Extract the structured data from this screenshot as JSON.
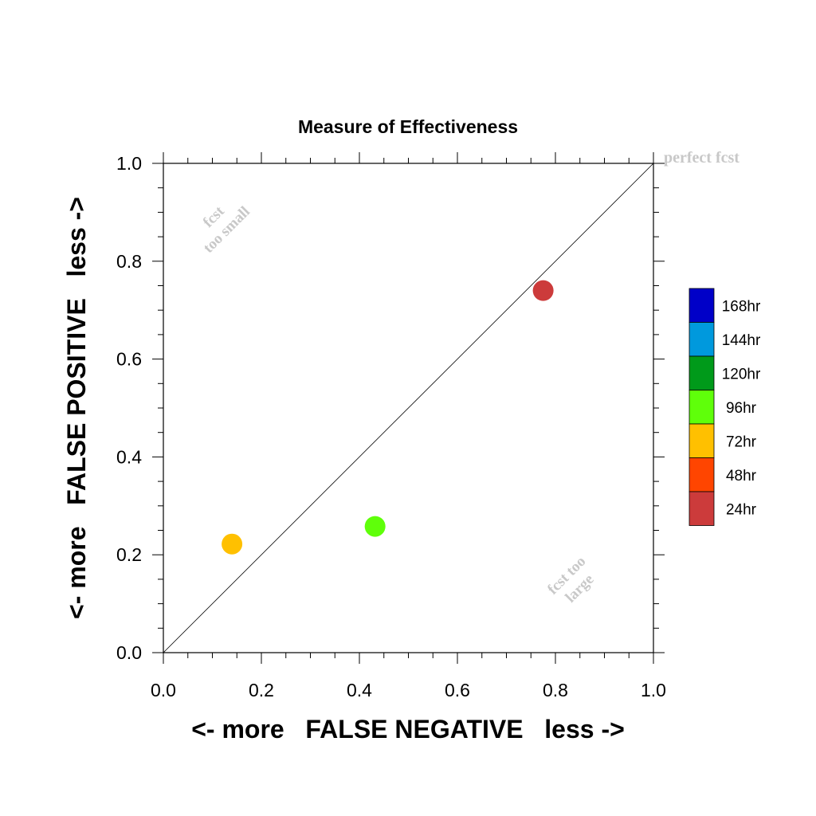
{
  "chart_data": {
    "type": "scatter",
    "title": "Measure of Effectiveness",
    "xlabel": "<- more   FALSE NEGATIVE   less ->",
    "ylabel": "<- more   FALSE POSITIVE   less ->",
    "xlim": [
      0.0,
      1.0
    ],
    "ylim": [
      0.0,
      1.0
    ],
    "x_ticks": [
      "0.0",
      "0.2",
      "0.4",
      "0.6",
      "0.8",
      "1.0"
    ],
    "y_ticks": [
      "0.0",
      "0.2",
      "0.4",
      "0.6",
      "0.8",
      "1.0"
    ],
    "grid": false,
    "reference_line": {
      "from": [
        0.0,
        0.0
      ],
      "to": [
        1.0,
        1.0
      ]
    },
    "annotations": {
      "perfect": "perfect fcst",
      "small_line1": "fcst",
      "small_line2": "too small",
      "large_line1": "fcst too",
      "large_line2": "large"
    },
    "points": [
      {
        "label": "24hr",
        "x": 0.775,
        "y": 0.74,
        "color": "#cc3b3b"
      },
      {
        "label": "72hr",
        "x": 0.14,
        "y": 0.222,
        "color": "#ffc000"
      },
      {
        "label": "96hr",
        "x": 0.432,
        "y": 0.258,
        "color": "#5fff0a"
      }
    ],
    "legend": {
      "position": "right",
      "items": [
        {
          "label": "168hr",
          "color": "#0000c8"
        },
        {
          "label": "144hr",
          "color": "#0099dd"
        },
        {
          "label": "120hr",
          "color": "#009a1a"
        },
        {
          "label": "96hr",
          "color": "#5fff0a"
        },
        {
          "label": "72hr",
          "color": "#ffc000"
        },
        {
          "label": "48hr",
          "color": "#ff4500"
        },
        {
          "label": "24hr",
          "color": "#cc3b3b"
        }
      ]
    }
  }
}
